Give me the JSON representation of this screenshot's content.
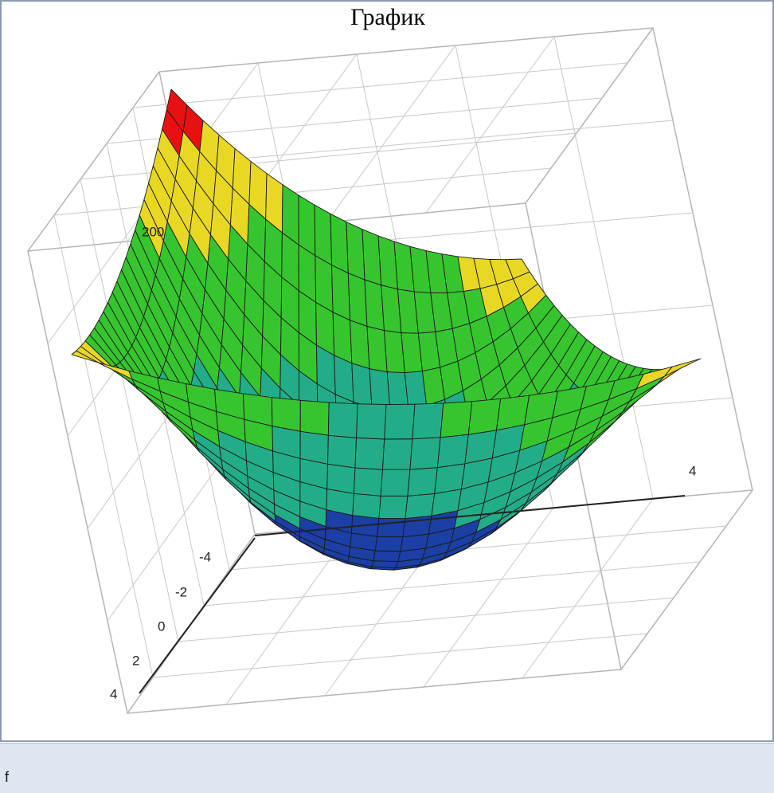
{
  "title": "График",
  "z_axis": {
    "ticks": [
      "200"
    ]
  },
  "x_axis": {
    "ticks": [
      "4"
    ]
  },
  "y_axis": {
    "ticks": [
      "-4",
      "-2",
      "0",
      "2",
      "4"
    ]
  },
  "footer": {
    "label": "f"
  }
}
